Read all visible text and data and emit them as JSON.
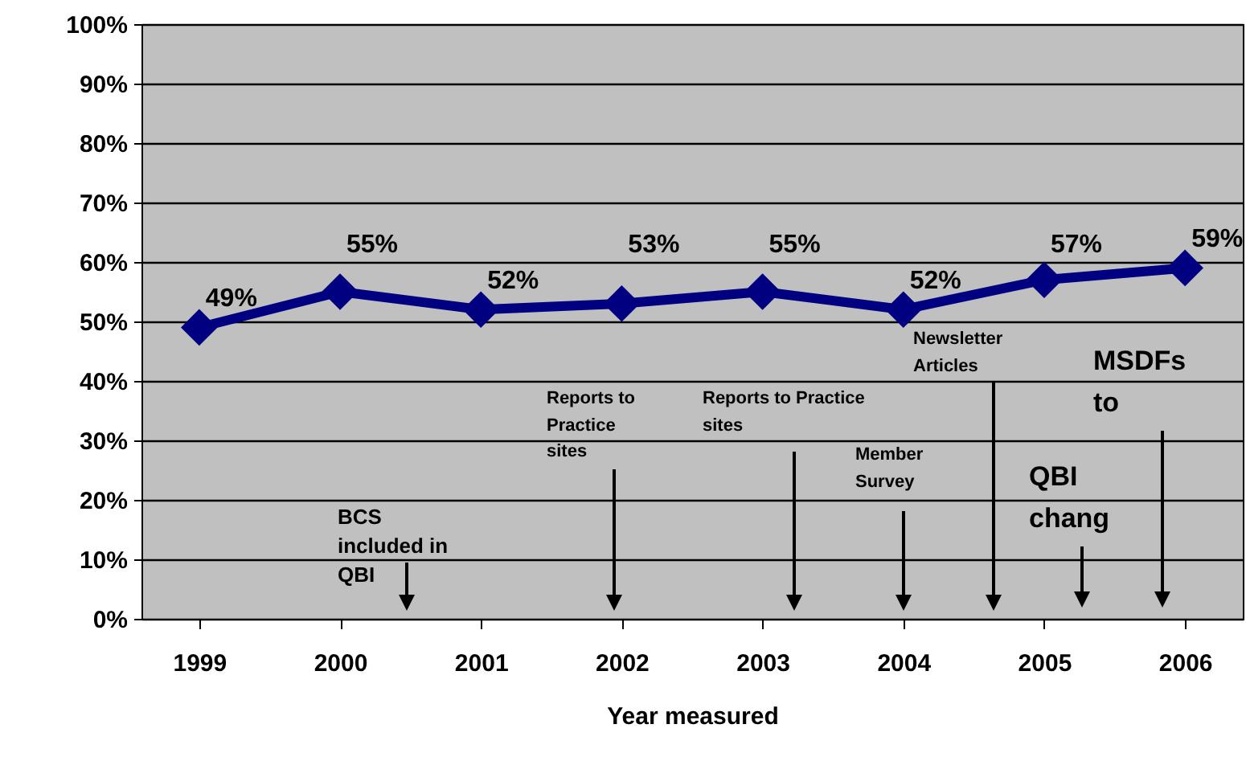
{
  "chart_data": {
    "type": "line",
    "xlabel": "Year measured",
    "categories": [
      "1999",
      "2000",
      "2001",
      "2002",
      "2003",
      "2004",
      "2005",
      "2006"
    ],
    "series": [
      {
        "color": "#000080",
        "values": [
          49,
          55,
          52,
          53,
          55,
          52,
          57,
          59
        ],
        "value_labels": [
          "49%",
          "55%",
          "52%",
          "53%",
          "55%",
          "52%",
          "57%",
          "59%"
        ]
      }
    ],
    "ylim": [
      0,
      100
    ],
    "yticks": [
      {
        "value": 0,
        "label": "0%"
      },
      {
        "value": 10,
        "label": "10%"
      },
      {
        "value": 20,
        "label": "20%"
      },
      {
        "value": 30,
        "label": "30%"
      },
      {
        "value": 40,
        "label": "40%"
      },
      {
        "value": 50,
        "label": "50%"
      },
      {
        "value": 60,
        "label": "60%"
      },
      {
        "value": 70,
        "label": "70%"
      },
      {
        "value": 80,
        "label": "80%"
      },
      {
        "value": 90,
        "label": "90%"
      },
      {
        "value": 100,
        "label": "100%"
      }
    ],
    "grid": "y",
    "marker": "diamond",
    "line_style": "solid",
    "annotations": [
      "BCS included in QBI",
      "Reports to Practice sites",
      "Reports to Practice sites",
      "Member Survey",
      "Newsletter Articles",
      "MSDFs to",
      "QBI chang"
    ]
  }
}
